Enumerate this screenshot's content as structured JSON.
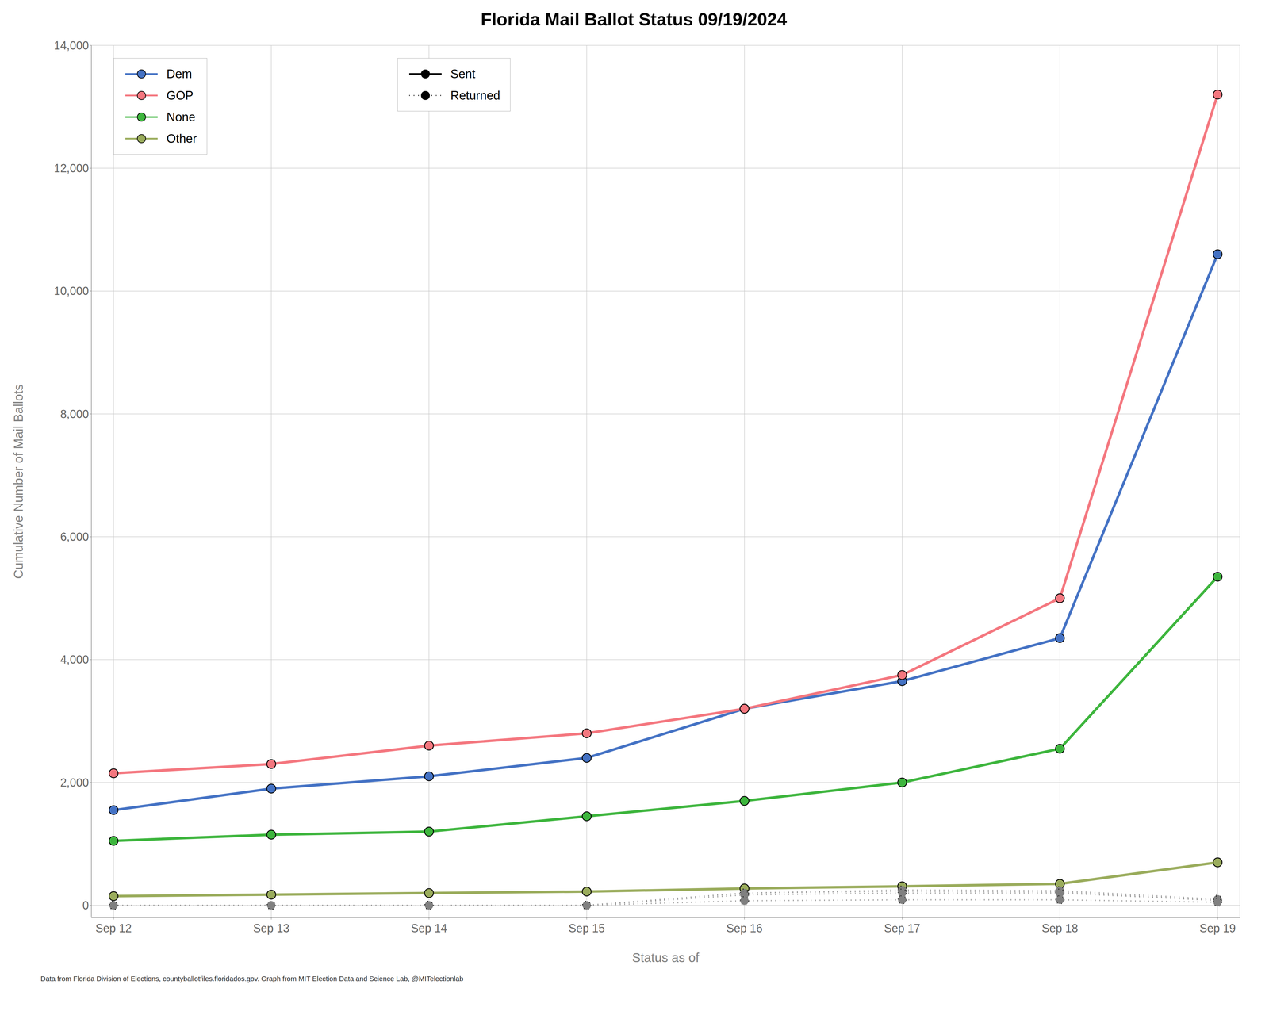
{
  "chart_data": {
    "type": "line",
    "title": "Florida Mail Ballot Status 09/19/2024",
    "xlabel": "Status as of",
    "ylabel": "Cumulative Number of Mail Ballots",
    "categories": [
      "Sep 12",
      "Sep 13",
      "Sep 14",
      "Sep 15",
      "Sep 16",
      "Sep 17",
      "Sep 18",
      "Sep 19"
    ],
    "series": [
      {
        "name": "Dem",
        "color": "#4472c4",
        "line_style": "solid",
        "values": [
          1550,
          1900,
          2100,
          2400,
          3200,
          3650,
          4350,
          10600
        ]
      },
      {
        "name": "GOP",
        "color": "#f4777f",
        "line_style": "solid",
        "values": [
          2150,
          2300,
          2600,
          2800,
          3200,
          3750,
          5000,
          13200
        ]
      },
      {
        "name": "None",
        "color": "#3db53d",
        "line_style": "solid",
        "values": [
          1050,
          1150,
          1200,
          1450,
          1700,
          2000,
          2550,
          5350
        ]
      },
      {
        "name": "Other",
        "color": "#9aac5c",
        "line_style": "solid",
        "values": [
          150,
          175,
          200,
          225,
          275,
          310,
          350,
          700
        ]
      },
      {
        "name": "Dem",
        "color": "#808080",
        "line_style": "dotted",
        "values": [
          0,
          0,
          0,
          0,
          200,
          230,
          220,
          80
        ]
      },
      {
        "name": "GOP",
        "color": "#808080",
        "line_style": "dotted",
        "values": [
          0,
          0,
          0,
          0,
          200,
          250,
          240,
          100
        ]
      },
      {
        "name": "None",
        "color": "#808080",
        "line_style": "dotted",
        "values": [
          0,
          0,
          0,
          0,
          170,
          200,
          200,
          80
        ]
      },
      {
        "name": "Other",
        "color": "#808080",
        "line_style": "dotted",
        "values": [
          0,
          0,
          0,
          0,
          75,
          90,
          90,
          50
        ]
      }
    ],
    "style_legend": [
      {
        "name": "Sent",
        "line_style": "solid"
      },
      {
        "name": "Returned",
        "line_style": "dotted"
      }
    ],
    "marker": "circle",
    "ylim": [
      -200,
      14000
    ],
    "yticks": [
      0,
      {
        "value": 2000,
        "label": "2,000"
      },
      {
        "value": 4000,
        "label": "4,000"
      },
      {
        "value": 6000,
        "label": "6,000"
      },
      {
        "value": 8000,
        "label": "8,000"
      },
      {
        "value": 10000,
        "label": "10,000"
      },
      {
        "value": 12000,
        "label": "12,000"
      },
      {
        "value": 14000,
        "label": "14,000"
      }
    ],
    "grid": true,
    "legend": "upper left",
    "footer": "Data from Florida Division of Elections, countyballotfiles.floridados.gov. Graph from MIT Election Data and Science Lab, @MITelectionlab"
  }
}
